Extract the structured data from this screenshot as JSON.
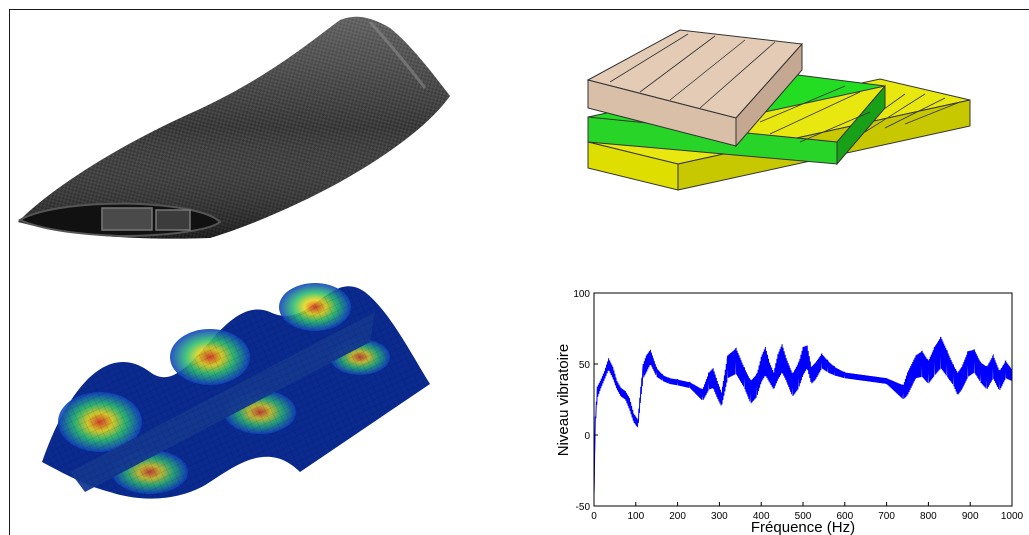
{
  "figures": {
    "blade": {
      "icon": "carbon-fiber-blade"
    },
    "layers": {
      "icon": "stacked-composite-plies"
    },
    "mesh": {
      "icon": "fe-mode-shape-surface"
    }
  },
  "colors": {
    "ply_top": "#e3cbb6",
    "ply_mid": "#22dd22",
    "ply_bottom": "#e8e810",
    "signal": "#0000ff"
  },
  "chart_data": {
    "type": "line",
    "title": "",
    "xlabel": "Fréquence (Hz)",
    "ylabel": "Niveau vibratoire",
    "xlim": [
      0,
      1000
    ],
    "ylim": [
      -50,
      100
    ],
    "xticks": [
      "0",
      "100",
      "200",
      "300",
      "400",
      "500",
      "600",
      "700",
      "800",
      "900",
      "1000"
    ],
    "yticks": [
      "100",
      "50",
      "0",
      "-50"
    ],
    "grid": false,
    "series": [
      {
        "color": "#0000ff",
        "x": [
          0,
          3,
          8,
          15,
          25,
          35,
          45,
          55,
          65,
          75,
          85,
          95,
          105,
          112,
          118,
          125,
          135,
          150,
          165,
          180,
          200,
          230,
          260,
          275,
          285,
          295,
          305,
          320,
          340,
          360,
          375,
          390,
          400,
          410,
          420,
          430,
          440,
          450,
          460,
          475,
          490,
          500,
          510,
          520,
          530,
          545,
          560,
          575,
          600,
          650,
          700,
          740,
          750,
          760,
          770,
          785,
          800,
          815,
          830,
          845,
          860,
          870,
          880,
          895,
          910,
          925,
          940,
          955,
          970,
          985,
          1000
        ],
        "y": [
          -45,
          10,
          30,
          35,
          42,
          50,
          44,
          35,
          30,
          28,
          22,
          12,
          8,
          30,
          45,
          50,
          55,
          44,
          40,
          38,
          37,
          35,
          28,
          38,
          40,
          32,
          25,
          48,
          52,
          40,
          30,
          35,
          46,
          52,
          44,
          38,
          48,
          54,
          46,
          35,
          42,
          52,
          55,
          42,
          45,
          52,
          48,
          45,
          42,
          40,
          38,
          30,
          36,
          42,
          48,
          50,
          44,
          52,
          58,
          50,
          42,
          36,
          40,
          50,
          52,
          44,
          40,
          48,
          38,
          46,
          42
        ],
        "band": [
          3,
          3,
          4,
          3,
          3,
          4,
          4,
          3,
          3,
          3,
          4,
          3,
          3,
          4,
          5,
          6,
          5,
          3,
          2,
          2,
          2,
          2,
          4,
          6,
          7,
          6,
          5,
          8,
          9,
          7,
          8,
          8,
          9,
          10,
          7,
          6,
          9,
          10,
          8,
          8,
          9,
          10,
          8,
          6,
          6,
          5,
          4,
          3,
          2,
          2,
          2,
          5,
          8,
          8,
          8,
          9,
          8,
          10,
          11,
          9,
          7,
          8,
          8,
          9,
          8,
          7,
          8,
          8,
          7,
          6,
          4
        ]
      }
    ]
  }
}
